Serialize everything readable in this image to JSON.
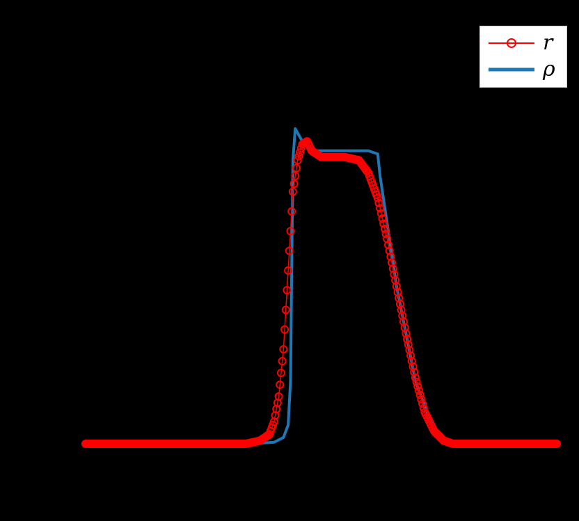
{
  "chart_data": {
    "type": "line",
    "title": "",
    "xlabel": "",
    "ylabel": "",
    "background": "#000000",
    "axes_visible": false,
    "grid": false,
    "legend_position": "upper right",
    "legend": [
      {
        "label": "r",
        "color": "#ff0000",
        "style": "line-with-open-circle-markers"
      },
      {
        "label": "ρ",
        "color": "#1f77b4",
        "style": "thick-solid-line"
      }
    ],
    "xlim": [
      0,
      1
    ],
    "ylim": [
      0,
      1.1
    ],
    "series": [
      {
        "name": "ρ",
        "color": "#1f77b4",
        "x": [
          0.0,
          0.35,
          0.4,
          0.42,
          0.43,
          0.435,
          0.44,
          0.445,
          0.46,
          0.48,
          0.52,
          0.6,
          0.62,
          0.625,
          0.64,
          0.66,
          0.7,
          0.74,
          0.76,
          0.78,
          1.0
        ],
        "y": [
          0.0,
          0.0,
          0.005,
          0.02,
          0.06,
          0.2,
          0.9,
          1.0,
          0.96,
          0.93,
          0.93,
          0.93,
          0.92,
          0.85,
          0.7,
          0.5,
          0.2,
          0.04,
          0.01,
          0.0,
          0.0
        ]
      },
      {
        "name": "r",
        "color": "#ff0000",
        "x": [
          0.0,
          0.34,
          0.37,
          0.39,
          0.4,
          0.41,
          0.42,
          0.43,
          0.44,
          0.45,
          0.46,
          0.47,
          0.48,
          0.5,
          0.55,
          0.58,
          0.6,
          0.62,
          0.64,
          0.66,
          0.68,
          0.7,
          0.72,
          0.74,
          0.76,
          0.78,
          1.0
        ],
        "y": [
          0.0,
          0.0,
          0.01,
          0.03,
          0.07,
          0.15,
          0.3,
          0.55,
          0.8,
          0.9,
          0.95,
          0.96,
          0.93,
          0.91,
          0.91,
          0.9,
          0.86,
          0.78,
          0.65,
          0.5,
          0.35,
          0.21,
          0.1,
          0.04,
          0.01,
          0.0,
          0.0
        ]
      }
    ]
  }
}
